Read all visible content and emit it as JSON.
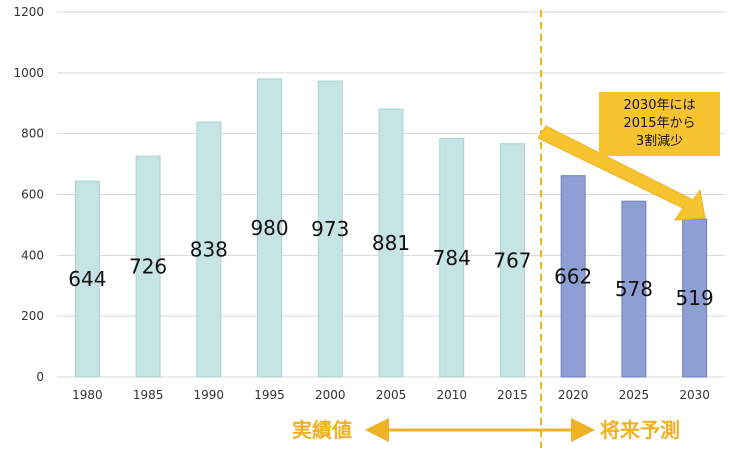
{
  "chart_data": {
    "type": "bar",
    "categories": [
      "1980",
      "1985",
      "1990",
      "1995",
      "2000",
      "2005",
      "2010",
      "2015",
      "2020",
      "2025",
      "2030"
    ],
    "values": [
      644,
      726,
      838,
      980,
      973,
      881,
      784,
      767,
      662,
      578,
      519
    ],
    "data_labels": [
      "644",
      "726",
      "838",
      "980",
      "973",
      "881",
      "784",
      "767",
      "662",
      "578",
      "519"
    ],
    "series_kind": [
      "actual",
      "actual",
      "actual",
      "actual",
      "actual",
      "actual",
      "actual",
      "actual",
      "forecast",
      "forecast",
      "forecast"
    ],
    "ylim": [
      0,
      1200
    ],
    "yticks": [
      "0",
      "200",
      "400",
      "600",
      "800",
      "1000",
      "1200"
    ],
    "grid": true,
    "colors": {
      "actual_fill": "#c5e4e3",
      "actual_stroke": "#a9d3d2",
      "forecast_fill": "#8d9fd3",
      "forecast_stroke": "#6f83bf",
      "accent": "#f0b124",
      "grid": "#d9d9d9"
    },
    "period_labels": {
      "actual": "実績値",
      "forecast": "将来予測"
    },
    "callout": {
      "lines": [
        "2030年には",
        "2015年から",
        "3割減少"
      ]
    }
  }
}
